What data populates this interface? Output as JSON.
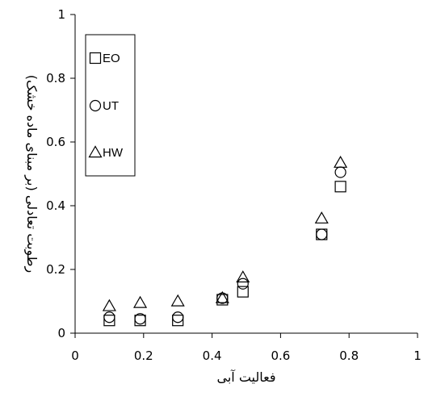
{
  "chart_data": {
    "type": "scatter",
    "xlabel": "فعالیت آبی",
    "ylabel": "رطوبت تعادلی (بر مبنای ماده خشک)",
    "xlim": [
      0,
      1
    ],
    "ylim": [
      0,
      1
    ],
    "x_ticks": [
      "0",
      "0.2",
      "0.4",
      "0.6",
      "0.8",
      "1"
    ],
    "y_ticks": [
      "0",
      "0.2",
      "0.4",
      "0.6",
      "0.8",
      "1"
    ],
    "grid": false,
    "legend_position": "top-left",
    "series": [
      {
        "name": "EO",
        "marker": "square",
        "points": [
          {
            "x": 0.1,
            "y": 0.04
          },
          {
            "x": 0.19,
            "y": 0.04
          },
          {
            "x": 0.3,
            "y": 0.04
          },
          {
            "x": 0.43,
            "y": 0.105
          },
          {
            "x": 0.49,
            "y": 0.13
          },
          {
            "x": 0.72,
            "y": 0.31
          },
          {
            "x": 0.775,
            "y": 0.46
          }
        ]
      },
      {
        "name": "UT",
        "marker": "circle",
        "points": [
          {
            "x": 0.1,
            "y": 0.05
          },
          {
            "x": 0.19,
            "y": 0.045
          },
          {
            "x": 0.3,
            "y": 0.05
          },
          {
            "x": 0.43,
            "y": 0.11
          },
          {
            "x": 0.49,
            "y": 0.155
          },
          {
            "x": 0.72,
            "y": 0.31
          },
          {
            "x": 0.775,
            "y": 0.505
          }
        ]
      },
      {
        "name": "HW",
        "marker": "triangle",
        "points": [
          {
            "x": 0.1,
            "y": 0.085
          },
          {
            "x": 0.19,
            "y": 0.095
          },
          {
            "x": 0.3,
            "y": 0.1
          },
          {
            "x": 0.43,
            "y": 0.11
          },
          {
            "x": 0.49,
            "y": 0.175
          },
          {
            "x": 0.72,
            "y": 0.36
          },
          {
            "x": 0.775,
            "y": 0.535
          }
        ]
      }
    ]
  }
}
